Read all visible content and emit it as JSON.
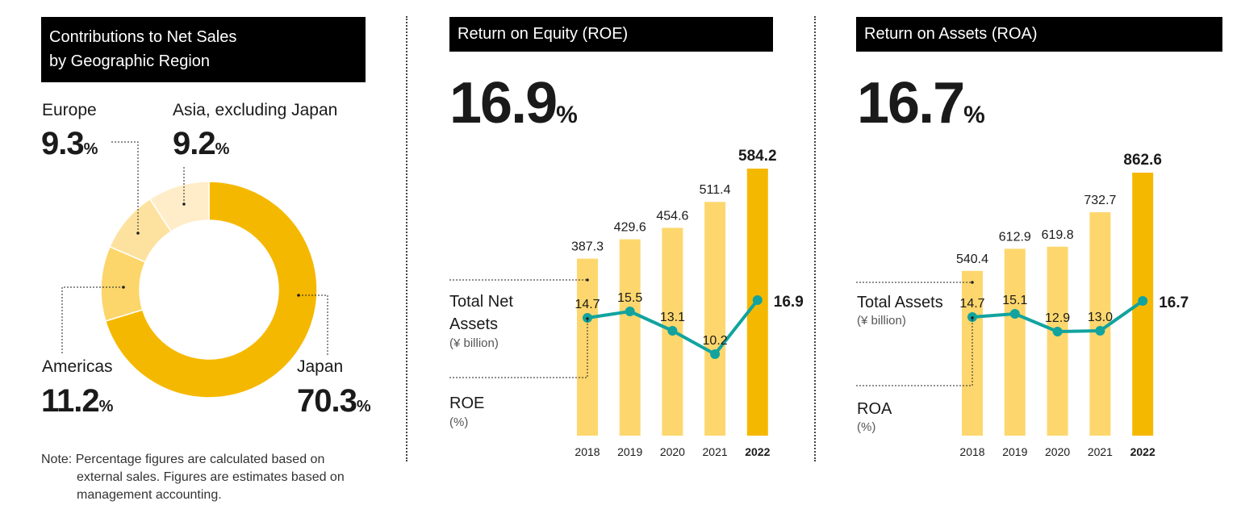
{
  "colors": {
    "accent": "#F5B800",
    "bar": "#FDD76E",
    "line": "#12A39F",
    "donut_japan": "#F5B800",
    "donut_americas": "#FCD66B",
    "donut_europe": "#FDE29F",
    "donut_asia": "#FEEDC8",
    "title_bg": "#000000"
  },
  "geo": {
    "title_line1": "Contributions to Net Sales",
    "title_line2": "by Geographic Region",
    "note_line1": "Note: Percentage figures are calculated based on",
    "note_line2": "external sales. Figures are estimates based on",
    "note_line3": "management accounting."
  },
  "roe": {
    "title": "Return on Equity (ROE)",
    "headline_value": "16.9",
    "headline_unit": "%",
    "bar_legend_line1": "Total Net",
    "bar_legend_line2": "Assets",
    "bar_legend_unit": "(¥ billion)",
    "line_legend": "ROE",
    "line_legend_unit": "(%)"
  },
  "roa": {
    "title": "Return on Assets (ROA)",
    "headline_value": "16.7",
    "headline_unit": "%",
    "bar_legend": "Total Assets",
    "bar_legend_unit": "(¥ billion)",
    "line_legend": "ROA",
    "line_legend_unit": "(%)"
  },
  "chart_data": [
    {
      "type": "pie",
      "title": "Contributions to Net Sales by Geographic Region",
      "unit": "%",
      "slices": [
        {
          "name": "Japan",
          "value": 70.3
        },
        {
          "name": "Americas",
          "value": 11.2
        },
        {
          "name": "Europe",
          "value": 9.3
        },
        {
          "name": "Asia, excluding Japan",
          "value": 9.2
        }
      ]
    },
    {
      "type": "bar",
      "title": "Return on Equity (ROE)",
      "categories": [
        "2018",
        "2019",
        "2020",
        "2021",
        "2022"
      ],
      "bar_labels": [
        "387.3",
        "429.6",
        "454.6",
        "511.4",
        "584.2"
      ],
      "line_labels": [
        "14.7",
        "15.5",
        "13.1",
        "10.2",
        "16.9"
      ],
      "series": [
        {
          "name": "Total Net Assets",
          "unit": "(¥ billion)",
          "kind": "bar",
          "values": [
            387.3,
            429.6,
            454.6,
            511.4,
            584.2
          ]
        },
        {
          "name": "ROE",
          "unit": "(%)",
          "kind": "line",
          "values": [
            14.7,
            15.5,
            13.1,
            10.2,
            16.9
          ]
        }
      ]
    },
    {
      "type": "bar",
      "title": "Return on Assets (ROA)",
      "categories": [
        "2018",
        "2019",
        "2020",
        "2021",
        "2022"
      ],
      "bar_labels": [
        "540.4",
        "612.9",
        "619.8",
        "732.7",
        "862.6"
      ],
      "line_labels": [
        "14.7",
        "15.1",
        "12.9",
        "13.0",
        "16.7"
      ],
      "series": [
        {
          "name": "Total Assets",
          "unit": "(¥ billion)",
          "kind": "bar",
          "values": [
            540.4,
            612.9,
            619.8,
            732.7,
            862.6
          ]
        },
        {
          "name": "ROA",
          "unit": "(%)",
          "kind": "line",
          "values": [
            14.7,
            15.1,
            12.9,
            13.0,
            16.7
          ]
        }
      ]
    }
  ]
}
